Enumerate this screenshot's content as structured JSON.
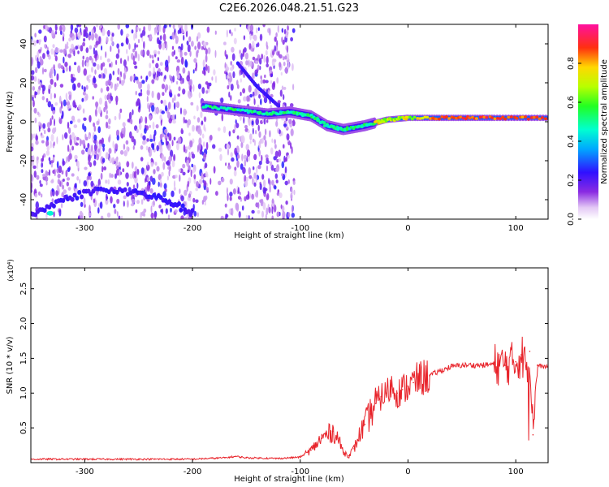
{
  "title": "C2E6.2026.048.21.51.G23",
  "chart_data": [
    {
      "type": "heatmap",
      "title": "C2E6.2026.048.21.51.G23",
      "xlabel": "Height of straight line (km)",
      "ylabel": "Frequency (Hz)",
      "xlim": [
        -350,
        130
      ],
      "ylim": [
        -50,
        50
      ],
      "xticks": [
        -300,
        -200,
        -100,
        0,
        100
      ],
      "yticks": [
        -40,
        -20,
        0,
        20,
        40
      ],
      "colorbar": {
        "label": "Normalized spectral amplitude",
        "range": [
          0,
          1
        ],
        "ticks": [
          "0.0",
          "0.2",
          "0.4",
          "0.6",
          "0.8"
        ],
        "tick_values": [
          0.0,
          0.2,
          0.4,
          0.6,
          0.8
        ],
        "colormap": "rainbow (white-violet-blue-cyan-green-yellow-red-magenta)"
      },
      "features": {
        "noise_region_km": [
          -350,
          -115
        ],
        "dominant_ridge": [
          {
            "x": -190,
            "y": 8
          },
          {
            "x": -160,
            "y": 6
          },
          {
            "x": -130,
            "y": 4
          },
          {
            "x": -110,
            "y": 5
          },
          {
            "x": -90,
            "y": 3
          },
          {
            "x": -75,
            "y": -2
          },
          {
            "x": -60,
            "y": -4
          },
          {
            "x": -40,
            "y": -2
          },
          {
            "x": -20,
            "y": 1
          },
          {
            "x": 0,
            "y": 2
          },
          {
            "x": 40,
            "y": 2
          },
          {
            "x": 80,
            "y": 2
          },
          {
            "x": 128,
            "y": 2
          }
        ],
        "diagonal_branch": [
          {
            "x": -158,
            "y": 30
          },
          {
            "x": -140,
            "y": 18
          },
          {
            "x": -120,
            "y": 8
          }
        ],
        "lower_band": [
          {
            "x": -350,
            "y": -48
          },
          {
            "x": -320,
            "y": -40
          },
          {
            "x": -290,
            "y": -35
          },
          {
            "x": -255,
            "y": -36
          },
          {
            "x": -225,
            "y": -40
          },
          {
            "x": -200,
            "y": -47
          }
        ]
      }
    },
    {
      "type": "line",
      "xlabel": "Height of straight line (km)",
      "ylabel": "SNR (10 * v/v)",
      "y_multiplier": "(x10⁴)",
      "xlim": [
        -350,
        130
      ],
      "ylim": [
        0,
        2.8
      ],
      "xticks": [
        -300,
        -200,
        -100,
        0,
        100
      ],
      "yticks": [
        "0.5",
        "1.0",
        "1.5",
        "2.0",
        "2.5"
      ],
      "ytick_values": [
        0.5,
        1.0,
        1.5,
        2.0,
        2.5
      ],
      "color": "#e8232a",
      "series": [
        {
          "x": [
            -350,
            -300,
            -250,
            -200,
            -170,
            -160,
            -150,
            -120,
            -100,
            -90,
            -80,
            -70,
            -65,
            -60,
            -55,
            -50,
            -45,
            -40,
            -35,
            -30,
            -25,
            -20,
            -15,
            -10,
            -5,
            0,
            5,
            10,
            20,
            30,
            40,
            50,
            60,
            70,
            80,
            90,
            100,
            105,
            110,
            113,
            116,
            120,
            125,
            130
          ],
          "y": [
            0.05,
            0.05,
            0.05,
            0.05,
            0.07,
            0.09,
            0.07,
            0.06,
            0.08,
            0.18,
            0.35,
            0.45,
            0.35,
            0.15,
            0.1,
            0.2,
            0.4,
            0.55,
            0.7,
            0.85,
            0.95,
            1.0,
            1.1,
            1.0,
            1.05,
            1.1,
            1.15,
            1.2,
            1.25,
            1.32,
            1.38,
            1.4,
            1.4,
            1.4,
            1.42,
            1.4,
            1.45,
            1.55,
            1.4,
            1.6,
            0.4,
            1.4,
            1.38,
            1.38
          ]
        }
      ]
    }
  ]
}
